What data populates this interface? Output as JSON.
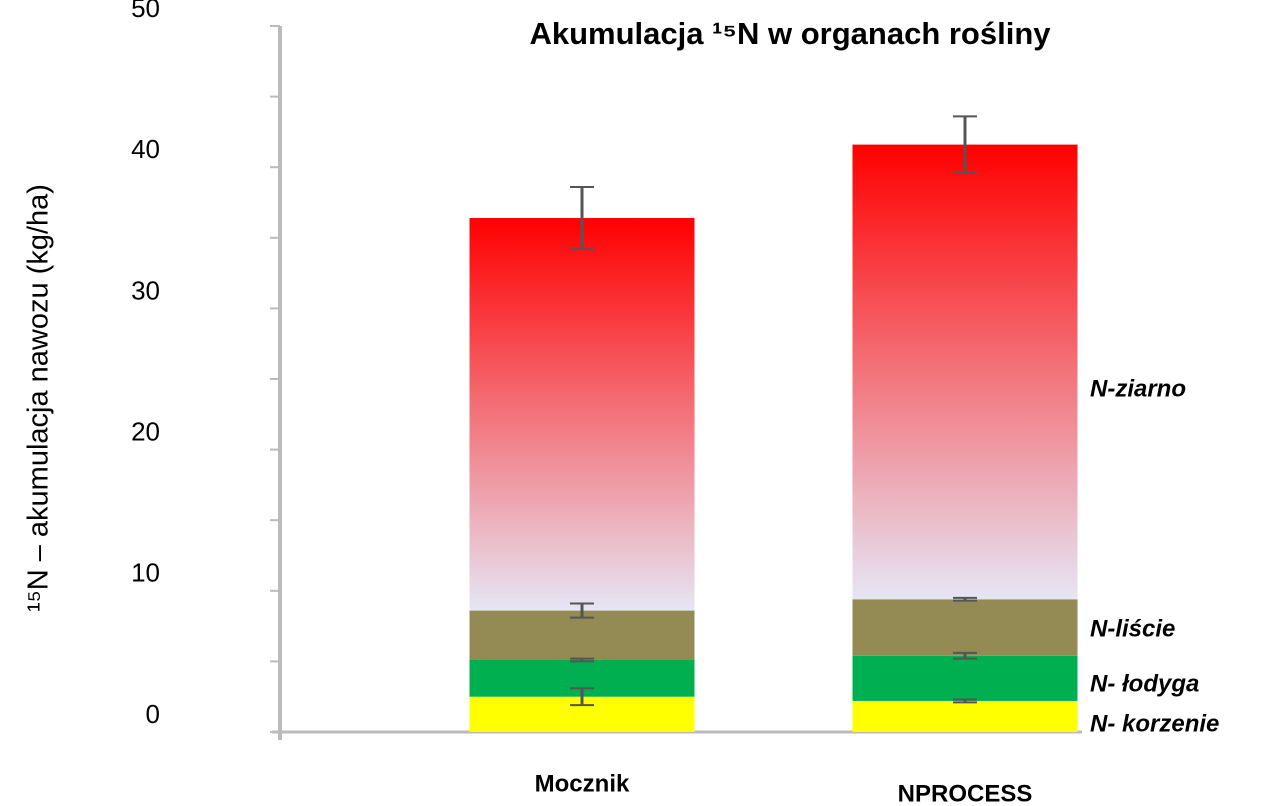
{
  "chart_data": {
    "type": "stacked_bar",
    "title": "Akumulacja ¹⁵N w organach rośliny",
    "y_label": "¹⁵N – akumulacja nawozu (kg/ha)",
    "categories": [
      "Mocznik",
      "NPROCESS"
    ],
    "series": [
      {
        "name": "N- korzenie",
        "color": "#ffff00",
        "values": [
          2.5,
          2.2
        ],
        "errors": [
          0.6,
          0.1
        ]
      },
      {
        "name": "N- łodyga",
        "color": "#00b050",
        "values": [
          2.6,
          3.2
        ],
        "errors": [
          0.1,
          0.2
        ]
      },
      {
        "name": "N-liście",
        "color": "#948a54",
        "values": [
          3.5,
          4.0
        ],
        "errors": [
          0.5,
          0.1
        ]
      },
      {
        "name": "N-ziarno",
        "color": "#ff0000",
        "gradient_to": "#e6e6f5",
        "values": [
          27.8,
          32.2
        ],
        "errors": [
          2.2,
          2.0
        ]
      }
    ],
    "ylim": [
      0,
      50
    ],
    "yticks": [
      0,
      10,
      20,
      30,
      40,
      50
    ],
    "minor_yticks": [
      5,
      15,
      25,
      35,
      45
    ]
  }
}
